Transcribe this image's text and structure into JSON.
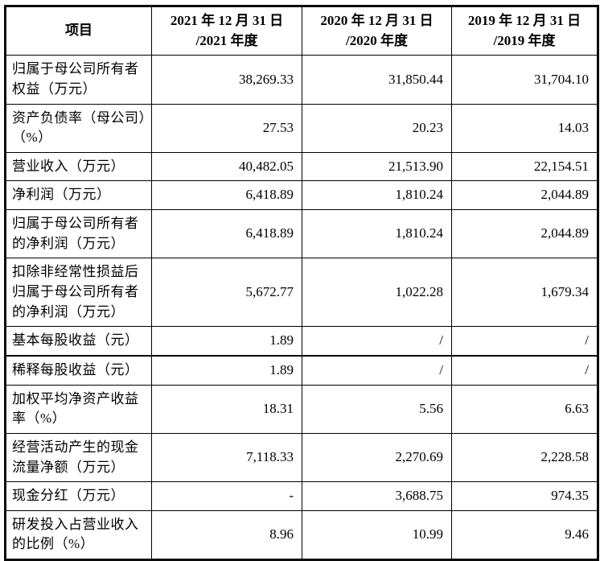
{
  "table": {
    "headers": {
      "item": "项目",
      "y2021": {
        "line1": "2021 年 12 月 31 日",
        "line2": "/2021 年度"
      },
      "y2020": {
        "line1": "2020 年 12 月 31 日",
        "line2": "/2020 年度"
      },
      "y2019": {
        "line1": "2019 年 12 月 31 日",
        "line2": "/2019 年度"
      }
    },
    "rows": [
      {
        "label": "归属于母公司所有者权益（万元）",
        "values": [
          "38,269.33",
          "31,850.44",
          "31,704.10"
        ]
      },
      {
        "label": "资产负债率（母公司）（%）",
        "values": [
          "27.53",
          "20.23",
          "14.03"
        ]
      },
      {
        "label": "营业收入（万元）",
        "values": [
          "40,482.05",
          "21,513.90",
          "22,154.51"
        ]
      },
      {
        "label": "净利润（万元）",
        "values": [
          "6,418.89",
          "1,810.24",
          "2,044.89"
        ]
      },
      {
        "label": "归属于母公司所有者的净利润（万元）",
        "values": [
          "6,418.89",
          "1,810.24",
          "2,044.89"
        ]
      },
      {
        "label": "扣除非经常性损益后归属于母公司所有者的净利润（万元）",
        "values": [
          "5,672.77",
          "1,022.28",
          "1,679.34"
        ]
      },
      {
        "label": "基本每股收益（元）",
        "values": [
          "1.89",
          "/",
          "/"
        ]
      },
      {
        "label": "稀释每股收益（元）",
        "values": [
          "1.89",
          "/",
          "/"
        ]
      },
      {
        "label": "加权平均净资产收益率（%）",
        "values": [
          "18.31",
          "5.56",
          "6.63"
        ]
      },
      {
        "label": "经营活动产生的现金流量净额（万元）",
        "values": [
          "7,118.33",
          "2,270.69",
          "2,228.58"
        ]
      },
      {
        "label": "现金分红（万元）",
        "values": [
          "-",
          "3,688.75",
          "974.35"
        ]
      },
      {
        "label": "研发投入占营业收入的比例（%）",
        "values": [
          "8.96",
          "10.99",
          "9.46"
        ]
      }
    ]
  }
}
